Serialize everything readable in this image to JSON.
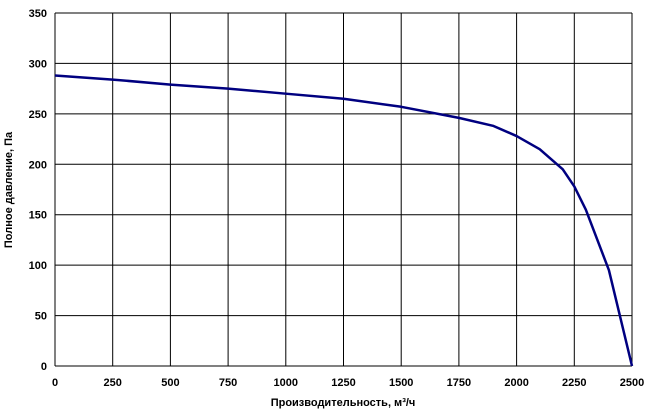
{
  "chart_data": {
    "type": "line",
    "x_label": "Производительность,  м³/ч",
    "y_label": "Полное  давление, Па",
    "x": [
      0,
      250,
      500,
      750,
      1000,
      1250,
      1500,
      1750,
      1900,
      2000,
      2100,
      2200,
      2250,
      2300,
      2400,
      2500
    ],
    "series": [
      {
        "color": "#000080",
        "values": [
          288,
          284,
          279,
          275,
          270,
          265,
          257,
          246,
          238,
          228,
          215,
          195,
          178,
          155,
          95,
          0
        ]
      }
    ],
    "xlim": [
      0,
      2500
    ],
    "xticks": [
      0,
      250,
      500,
      750,
      1000,
      1250,
      1500,
      1750,
      2000,
      2250,
      2500
    ],
    "ylim": [
      0,
      350
    ],
    "yticks": [
      0,
      50,
      100,
      150,
      200,
      250,
      300,
      350
    ],
    "grid": true
  }
}
